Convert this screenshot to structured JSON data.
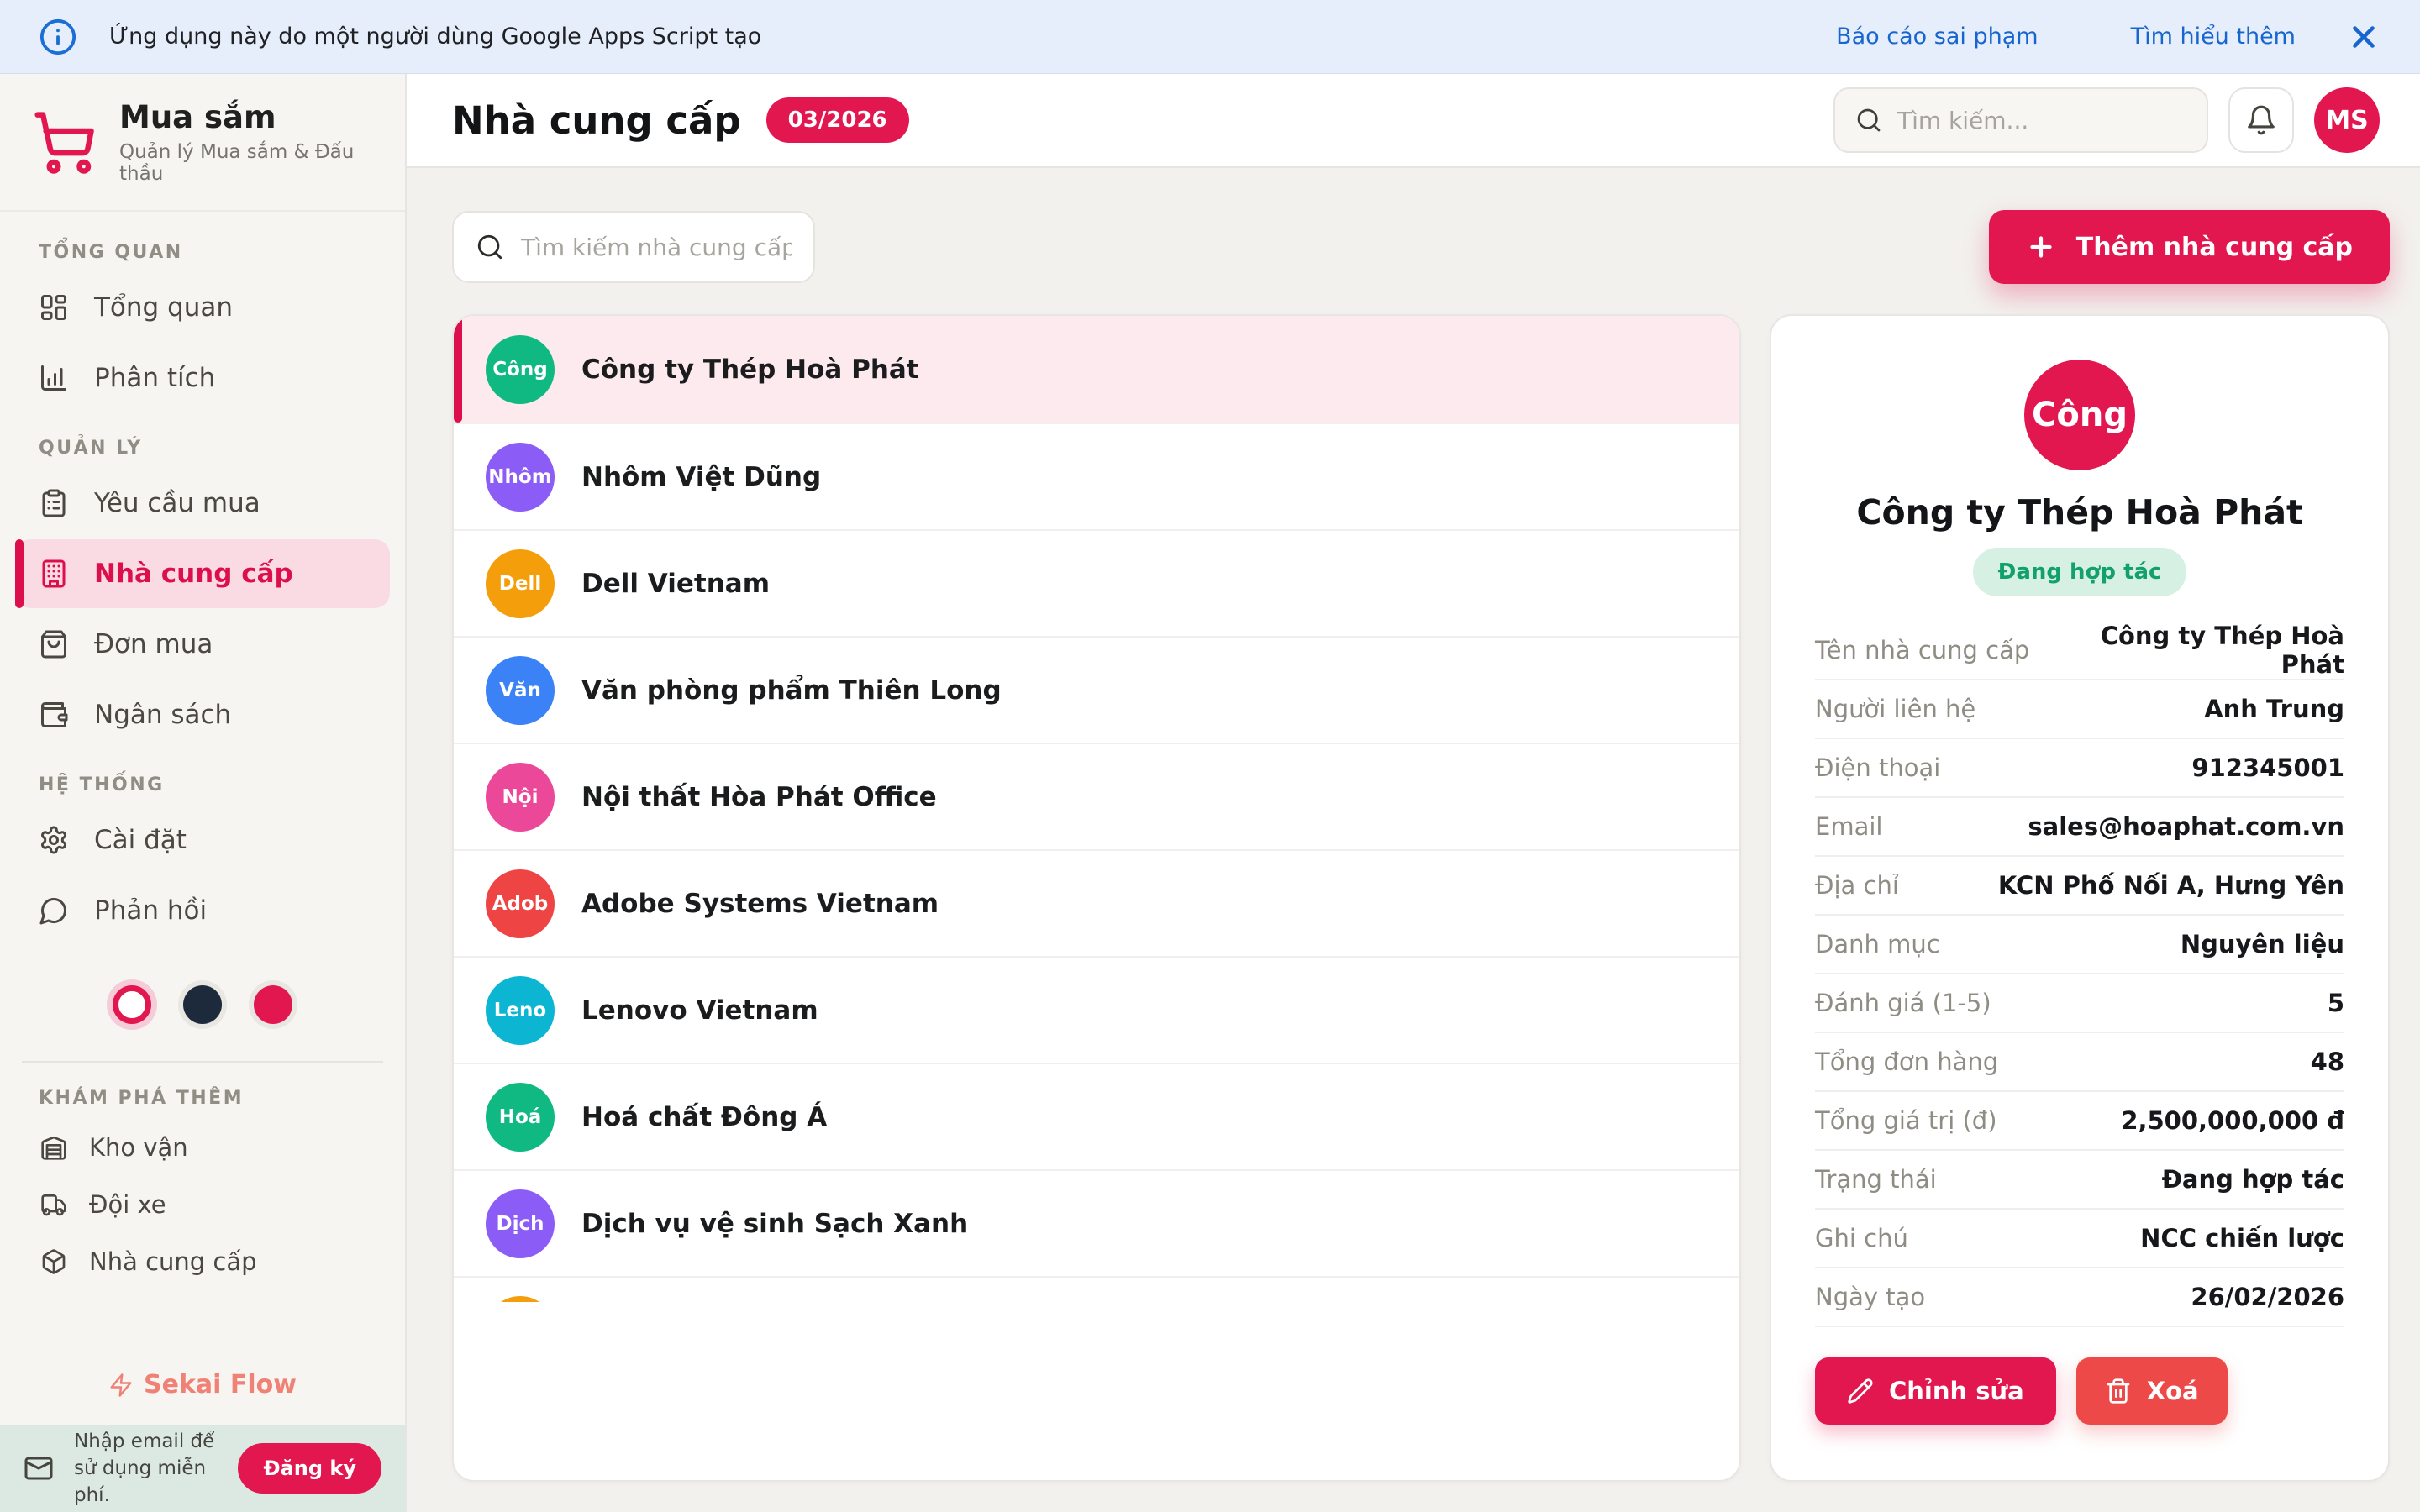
{
  "banner": {
    "text": "Ứng dụng này do một người dùng Google Apps Script tạo",
    "report_link": "Báo cáo sai phạm",
    "learn_more_link": "Tìm hiểu thêm"
  },
  "sidebar": {
    "app_name": "Mua sắm",
    "app_subtitle": "Quản lý Mua sắm & Đấu thầu",
    "sections": [
      {
        "title": "TỔNG QUAN",
        "items": [
          {
            "label": "Tổng quan",
            "icon": "dashboard-icon",
            "active": false
          },
          {
            "label": "Phân tích",
            "icon": "analytics-icon",
            "active": false
          }
        ]
      },
      {
        "title": "QUẢN LÝ",
        "items": [
          {
            "label": "Yêu cầu mua",
            "icon": "purchase-request-icon",
            "active": false
          },
          {
            "label": "Nhà cung cấp",
            "icon": "building-icon",
            "active": true
          },
          {
            "label": "Đơn mua",
            "icon": "shopping-bag-icon",
            "active": false
          },
          {
            "label": "Ngân sách",
            "icon": "wallet-icon",
            "active": false
          }
        ]
      },
      {
        "title": "HỆ THỐNG",
        "items": [
          {
            "label": "Cài đặt",
            "icon": "gear-icon",
            "active": false
          },
          {
            "label": "Phản hồi",
            "icon": "chat-bubble-icon",
            "active": false
          }
        ]
      }
    ],
    "theme_dots": [
      {
        "name": "light",
        "color": "#ffffff",
        "selected": true
      },
      {
        "name": "dark",
        "color": "#1d2a3c",
        "selected": false
      },
      {
        "name": "crimson",
        "color": "#e3174f",
        "selected": false
      }
    ],
    "explore": {
      "title": "KHÁM PHÁ THÊM",
      "items": [
        {
          "label": "Kho vận",
          "icon": "warehouse-icon"
        },
        {
          "label": "Đội xe",
          "icon": "truck-icon"
        },
        {
          "label": "Nhà cung cấp",
          "icon": "package-icon"
        }
      ]
    },
    "brand": "Sekai Flow",
    "signup": {
      "text": "Nhập email để sử dụng miễn phí.",
      "button_label": "Đăng ký"
    }
  },
  "header": {
    "title": "Nhà cung cấp",
    "badge": "03/2026",
    "search_placeholder": "Tìm kiếm...",
    "avatar_initials": "MS"
  },
  "toolbar": {
    "search_placeholder": "Tìm kiếm nhà cung cấp...",
    "add_button_label": "Thêm nhà cung cấp"
  },
  "suppliers": [
    {
      "initials": "Công",
      "name": "Công ty Thép Hoà Phát",
      "color": "#10b981",
      "selected": true,
      "partial": false
    },
    {
      "initials": "Nhôm",
      "name": "Nhôm Việt Dũng",
      "color": "#8b5cf6",
      "selected": false,
      "partial": false
    },
    {
      "initials": "Dell",
      "name": "Dell Vietnam",
      "color": "#f59e0b",
      "selected": false,
      "partial": false
    },
    {
      "initials": "Văn",
      "name": "Văn phòng phẩm Thiên Long",
      "color": "#3b82f6",
      "selected": false,
      "partial": false
    },
    {
      "initials": "Nội",
      "name": "Nội thất Hòa Phát Office",
      "color": "#ec4899",
      "selected": false,
      "partial": false
    },
    {
      "initials": "Adob",
      "name": "Adobe Systems Vietnam",
      "color": "#ef4444",
      "selected": false,
      "partial": false
    },
    {
      "initials": "Leno",
      "name": "Lenovo Vietnam",
      "color": "#0cb6d3",
      "selected": false,
      "partial": false
    },
    {
      "initials": "Hoá",
      "name": "Hoá chất Đông Á",
      "color": "#10b981",
      "selected": false,
      "partial": false
    },
    {
      "initials": "Dịch",
      "name": "Dịch vụ vệ sinh Sạch Xanh",
      "color": "#8b5cf6",
      "selected": false,
      "partial": false
    },
    {
      "initials": "",
      "name": "",
      "color": "#f59e0b",
      "selected": false,
      "partial": true
    }
  ],
  "detail": {
    "initials": "Công",
    "name": "Công ty Thép Hoà Phát",
    "status_badge": "Đang hợp tác",
    "fields": [
      {
        "label": "Tên nhà cung cấp",
        "value": "Công ty Thép Hoà Phát"
      },
      {
        "label": "Người liên hệ",
        "value": "Anh Trung"
      },
      {
        "label": "Điện thoại",
        "value": "912345001"
      },
      {
        "label": "Email",
        "value": "sales@hoaphat.com.vn"
      },
      {
        "label": "Địa chỉ",
        "value": "KCN Phố Nối A, Hưng Yên"
      },
      {
        "label": "Danh mục",
        "value": "Nguyên liệu"
      },
      {
        "label": "Đánh giá (1-5)",
        "value": "5"
      },
      {
        "label": "Tổng đơn hàng",
        "value": "48"
      },
      {
        "label": "Tổng giá trị (đ)",
        "value": "2,500,000,000 đ"
      },
      {
        "label": "Trạng thái",
        "value": "Đang hợp tác"
      },
      {
        "label": "Ghi chú",
        "value": "NCC chiến lược"
      },
      {
        "label": "Ngày tạo",
        "value": "26/02/2026"
      }
    ],
    "edit_button_label": "Chỉnh sửa",
    "delete_button_label": "Xoá"
  },
  "colors": {
    "accent": "#e3174f",
    "danger": "#ee4949",
    "status_badge_bg": "#d6f1e3",
    "status_badge_text": "#12a06b",
    "banner_bg": "#e7eefb",
    "banner_link": "#1765cf",
    "selected_row_bg": "#fdeaee"
  }
}
